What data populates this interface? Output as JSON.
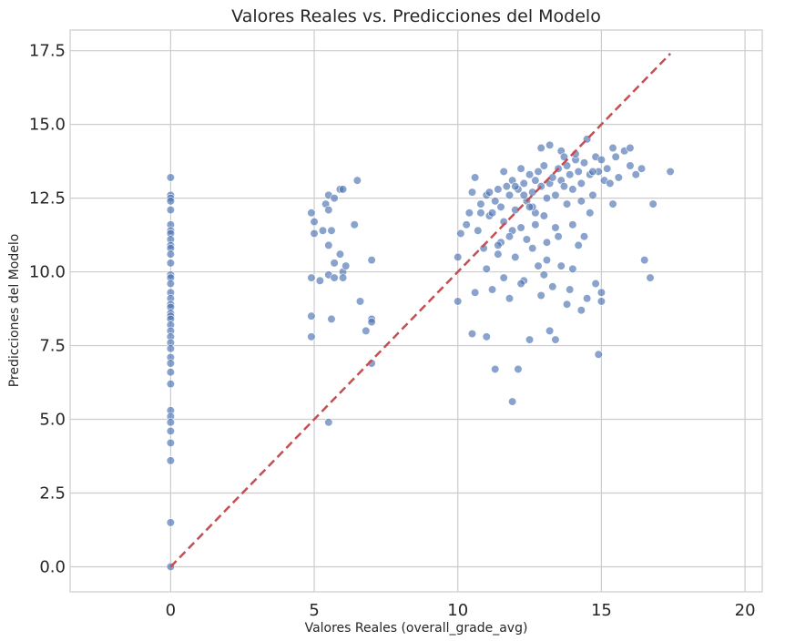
{
  "chart_data": {
    "type": "scatter",
    "title": "Valores Reales vs. Predicciones del Modelo",
    "xlabel": "Valores Reales (overall_grade_avg)",
    "ylabel": "Predicciones del Modelo",
    "xlim": [
      -3.5,
      20.6
    ],
    "ylim": [
      -0.85,
      18.2
    ],
    "xticks": [
      0,
      5,
      10,
      15,
      20
    ],
    "xtick_labels": [
      "0",
      "5",
      "10",
      "15",
      "20"
    ],
    "yticks": [
      0,
      2.5,
      5,
      7.5,
      10,
      12.5,
      15,
      17.5
    ],
    "ytick_labels": [
      "0.0",
      "2.5",
      "5.0",
      "7.5",
      "10.0",
      "12.5",
      "15.0",
      "17.5"
    ],
    "grid": true,
    "colors": {
      "points": "#4c72b0",
      "reference_line": "#c44e52",
      "grid": "#cccccc"
    },
    "reference_line": {
      "style": "dashed",
      "x": [
        0,
        17.4
      ],
      "y": [
        0,
        17.4
      ]
    },
    "series": [
      {
        "points": [
          [
            0,
            13.2
          ],
          [
            0,
            12.6
          ],
          [
            0,
            12.5
          ],
          [
            0,
            12.4
          ],
          [
            0,
            12.1
          ],
          [
            0,
            11.6
          ],
          [
            0,
            11.4
          ],
          [
            0,
            11.3
          ],
          [
            0,
            11.1
          ],
          [
            0,
            10.9
          ],
          [
            0,
            10.8
          ],
          [
            0,
            10.6
          ],
          [
            0,
            10.3
          ],
          [
            0,
            9.9
          ],
          [
            0,
            9.8
          ],
          [
            0,
            9.6
          ],
          [
            0,
            9.3
          ],
          [
            0,
            9.1
          ],
          [
            0,
            8.9
          ],
          [
            0,
            8.8
          ],
          [
            0,
            8.6
          ],
          [
            0,
            8.5
          ],
          [
            0,
            8.4
          ],
          [
            0,
            8.2
          ],
          [
            0,
            8.0
          ],
          [
            0,
            7.8
          ],
          [
            0,
            7.6
          ],
          [
            0,
            7.4
          ],
          [
            0,
            7.1
          ],
          [
            0,
            6.9
          ],
          [
            0,
            6.6
          ],
          [
            0,
            6.2
          ],
          [
            0,
            5.3
          ],
          [
            0,
            5.1
          ],
          [
            0,
            4.9
          ],
          [
            0,
            4.6
          ],
          [
            0,
            4.2
          ],
          [
            0,
            3.6
          ],
          [
            0,
            1.5
          ],
          [
            0,
            0.0
          ],
          [
            4.9,
            12.0
          ],
          [
            5.0,
            11.7
          ],
          [
            5.0,
            11.3
          ],
          [
            4.9,
            9.8
          ],
          [
            4.9,
            8.5
          ],
          [
            4.9,
            7.8
          ],
          [
            5.3,
            11.4
          ],
          [
            5.4,
            12.3
          ],
          [
            5.5,
            12.1
          ],
          [
            5.5,
            12.6
          ],
          [
            5.5,
            10.9
          ],
          [
            5.7,
            12.5
          ],
          [
            5.9,
            12.8
          ],
          [
            6.0,
            12.8
          ],
          [
            6.5,
            13.1
          ],
          [
            5.6,
            11.4
          ],
          [
            5.9,
            10.6
          ],
          [
            5.7,
            10.3
          ],
          [
            6.0,
            10.0
          ],
          [
            6.1,
            10.2
          ],
          [
            6.4,
            11.6
          ],
          [
            5.2,
            9.7
          ],
          [
            5.5,
            9.9
          ],
          [
            5.7,
            9.8
          ],
          [
            6.0,
            9.8
          ],
          [
            5.6,
            8.4
          ],
          [
            6.6,
            9.0
          ],
          [
            6.8,
            8.0
          ],
          [
            7.0,
            10.4
          ],
          [
            7.0,
            8.4
          ],
          [
            7.0,
            8.3
          ],
          [
            7.0,
            6.9
          ],
          [
            5.5,
            4.9
          ],
          [
            10.0,
            10.5
          ],
          [
            10.1,
            11.3
          ],
          [
            10.3,
            11.6
          ],
          [
            10.4,
            12.0
          ],
          [
            10.5,
            12.7
          ],
          [
            10.6,
            13.2
          ],
          [
            10.8,
            12.3
          ],
          [
            11.0,
            12.6
          ],
          [
            11.1,
            11.9
          ],
          [
            10.9,
            10.8
          ],
          [
            11.2,
            12.0
          ],
          [
            11.4,
            12.8
          ],
          [
            11.5,
            12.2
          ],
          [
            11.6,
            11.7
          ],
          [
            11.8,
            12.6
          ],
          [
            11.9,
            13.1
          ],
          [
            12.0,
            12.1
          ],
          [
            12.1,
            12.8
          ],
          [
            12.2,
            11.5
          ],
          [
            12.3,
            13.0
          ],
          [
            12.4,
            12.4
          ],
          [
            12.5,
            13.3
          ],
          [
            12.6,
            12.7
          ],
          [
            12.7,
            12.0
          ],
          [
            12.8,
            13.4
          ],
          [
            12.9,
            12.9
          ],
          [
            13.0,
            13.6
          ],
          [
            13.1,
            12.5
          ],
          [
            13.2,
            13.0
          ],
          [
            13.3,
            13.2
          ],
          [
            13.4,
            12.6
          ],
          [
            13.5,
            13.5
          ],
          [
            13.6,
            13.1
          ],
          [
            13.7,
            12.9
          ],
          [
            13.8,
            13.6
          ],
          [
            13.9,
            13.3
          ],
          [
            14.0,
            12.8
          ],
          [
            14.1,
            13.8
          ],
          [
            14.2,
            13.4
          ],
          [
            14.3,
            13.0
          ],
          [
            14.4,
            13.7
          ],
          [
            14.5,
            14.5
          ],
          [
            14.6,
            13.3
          ],
          [
            14.7,
            12.6
          ],
          [
            14.8,
            13.9
          ],
          [
            14.9,
            13.4
          ],
          [
            15.0,
            13.8
          ],
          [
            15.1,
            13.1
          ],
          [
            15.2,
            13.5
          ],
          [
            15.4,
            14.2
          ],
          [
            15.6,
            13.2
          ],
          [
            15.8,
            14.1
          ],
          [
            16.0,
            13.6
          ],
          [
            16.2,
            13.3
          ],
          [
            16.4,
            13.5
          ],
          [
            16.8,
            12.3
          ],
          [
            17.4,
            13.4
          ],
          [
            16.5,
            10.4
          ],
          [
            16.7,
            9.8
          ],
          [
            15.0,
            9.0
          ],
          [
            14.9,
            7.2
          ],
          [
            14.3,
            8.7
          ],
          [
            13.8,
            8.9
          ],
          [
            13.4,
            7.7
          ],
          [
            13.2,
            8.0
          ],
          [
            12.5,
            7.7
          ],
          [
            12.1,
            6.7
          ],
          [
            11.3,
            6.7
          ],
          [
            11.9,
            5.6
          ],
          [
            10.5,
            7.9
          ],
          [
            11.0,
            7.8
          ],
          [
            10.0,
            9.0
          ],
          [
            10.6,
            9.3
          ],
          [
            11.0,
            10.1
          ],
          [
            11.4,
            10.6
          ],
          [
            11.6,
            9.8
          ],
          [
            11.8,
            9.1
          ],
          [
            12.0,
            10.5
          ],
          [
            12.3,
            9.7
          ],
          [
            12.6,
            10.8
          ],
          [
            12.9,
            9.2
          ],
          [
            13.1,
            10.4
          ],
          [
            13.3,
            9.5
          ],
          [
            13.6,
            10.2
          ],
          [
            13.9,
            9.4
          ],
          [
            14.2,
            10.9
          ],
          [
            14.5,
            9.1
          ],
          [
            14.8,
            9.6
          ],
          [
            15.0,
            9.3
          ],
          [
            12.4,
            11.1
          ],
          [
            12.7,
            11.6
          ],
          [
            13.0,
            11.9
          ],
          [
            13.5,
            11.2
          ],
          [
            14.0,
            11.6
          ],
          [
            14.6,
            12.0
          ],
          [
            15.4,
            12.3
          ],
          [
            10.8,
            12.0
          ],
          [
            11.3,
            12.4
          ],
          [
            11.7,
            12.9
          ],
          [
            12.2,
            13.5
          ],
          [
            12.9,
            14.2
          ],
          [
            13.2,
            14.3
          ],
          [
            14.1,
            14.0
          ],
          [
            15.3,
            13.0
          ],
          [
            11.5,
            11.0
          ],
          [
            11.9,
            11.4
          ],
          [
            12.6,
            12.2
          ],
          [
            13.8,
            12.3
          ],
          [
            11.1,
            12.7
          ],
          [
            12.3,
            12.6
          ],
          [
            13.4,
            11.5
          ],
          [
            14.4,
            11.2
          ],
          [
            12.8,
            10.2
          ],
          [
            11.2,
            9.4
          ],
          [
            10.7,
            11.4
          ],
          [
            12.0,
            12.9
          ],
          [
            13.6,
            14.1
          ],
          [
            14.7,
            13.4
          ],
          [
            15.5,
            13.9
          ],
          [
            16.0,
            14.2
          ],
          [
            11.6,
            13.4
          ],
          [
            12.5,
            12.2
          ],
          [
            13.1,
            11.0
          ],
          [
            14.3,
            12.4
          ],
          [
            12.2,
            9.6
          ],
          [
            11.4,
            10.9
          ],
          [
            13.0,
            9.9
          ],
          [
            14.0,
            10.1
          ],
          [
            11.8,
            11.2
          ],
          [
            12.7,
            13.1
          ],
          [
            13.7,
            13.9
          ]
        ]
      }
    ]
  }
}
